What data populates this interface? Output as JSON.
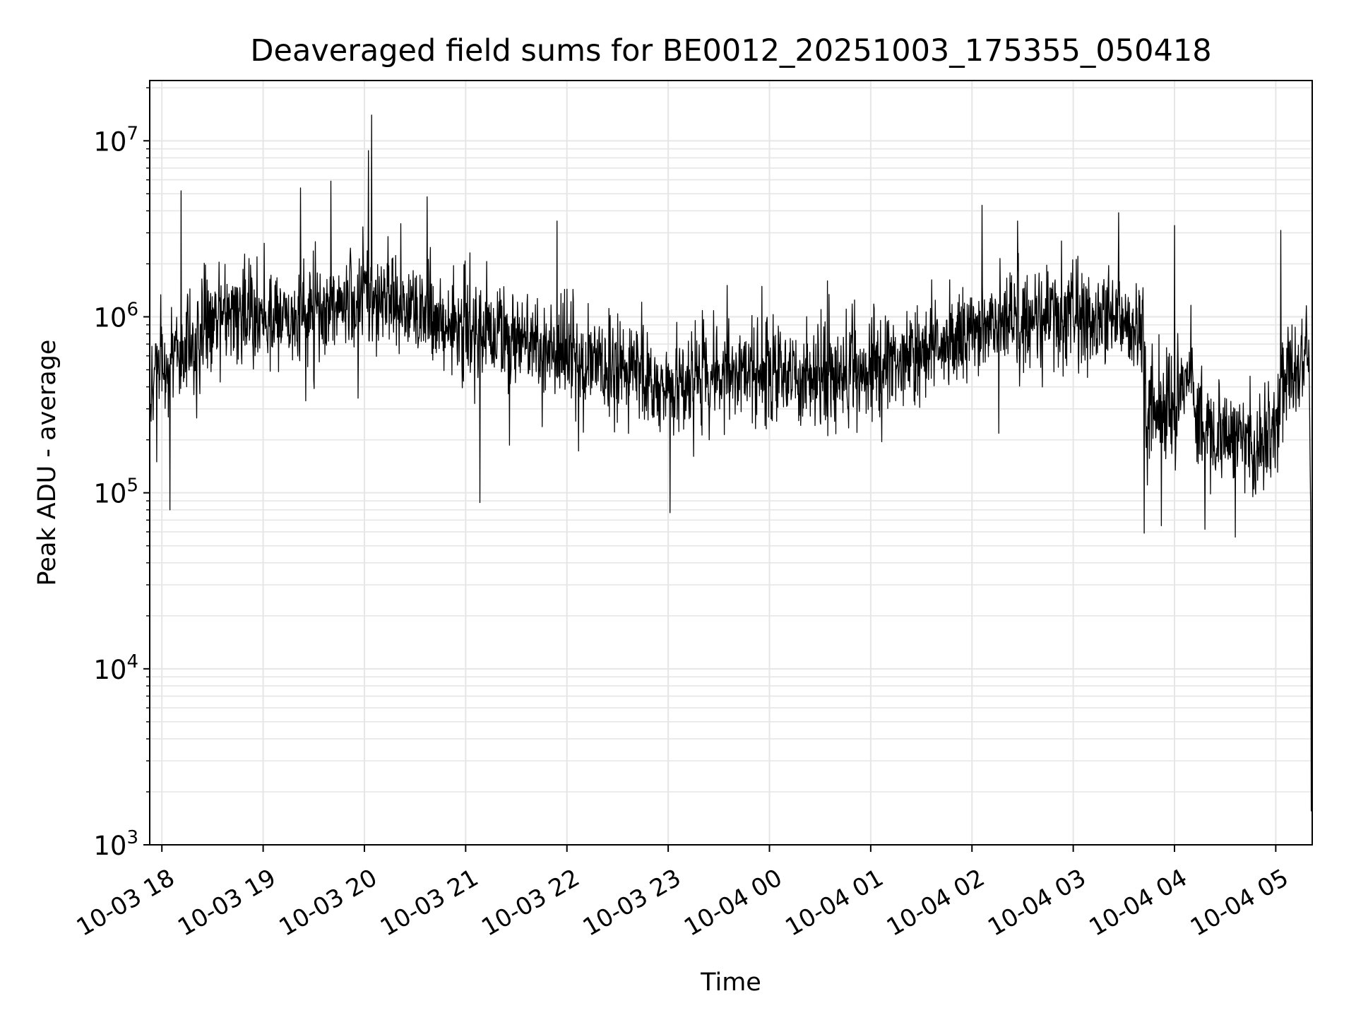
{
  "chart_data": {
    "type": "line",
    "title": "Deaveraged field sums for BE0012_20251003_175355_050418",
    "xlabel": "Time",
    "ylabel": "Peak ADU - average",
    "yscale": "log",
    "ylim": [
      1000,
      22000000
    ],
    "xlim_hours": [
      -0.12,
      11.36
    ],
    "x_origin_label": "10-03 18",
    "grid": true,
    "grid_minor": true,
    "line_color": "#000000",
    "grid_color": "#e6e6e6",
    "x_ticks": [
      {
        "hours": 0,
        "label": "10-03 18"
      },
      {
        "hours": 1,
        "label": "10-03 19"
      },
      {
        "hours": 2,
        "label": "10-03 20"
      },
      {
        "hours": 3,
        "label": "10-03 21"
      },
      {
        "hours": 4,
        "label": "10-03 22"
      },
      {
        "hours": 5,
        "label": "10-03 23"
      },
      {
        "hours": 6,
        "label": "10-04 00"
      },
      {
        "hours": 7,
        "label": "10-04 01"
      },
      {
        "hours": 8,
        "label": "10-04 02"
      },
      {
        "hours": 9,
        "label": "10-04 03"
      },
      {
        "hours": 10,
        "label": "10-04 04"
      },
      {
        "hours": 11,
        "label": "10-04 05"
      }
    ],
    "y_ticks": [
      {
        "value": 1000,
        "base": "10",
        "exp": "3"
      },
      {
        "value": 10000,
        "base": "10",
        "exp": "4"
      },
      {
        "value": 100000,
        "base": "10",
        "exp": "5"
      },
      {
        "value": 1000000,
        "base": "10",
        "exp": "6"
      },
      {
        "value": 10000000,
        "base": "10",
        "exp": "7"
      }
    ],
    "series": [
      {
        "name": "field sums",
        "envelope_x_hours": [
          -0.12,
          0.25,
          0.5,
          1.0,
          1.5,
          2.0,
          2.5,
          3.0,
          3.5,
          4.0,
          4.5,
          5.0,
          5.5,
          6.0,
          6.5,
          7.0,
          7.5,
          8.0,
          8.5,
          9.0,
          9.5,
          9.68,
          9.72,
          10.0,
          10.17,
          10.2,
          10.5,
          10.8,
          11.0,
          11.1,
          11.28
        ],
        "envelope_median": [
          450000,
          700000,
          1000000,
          1000000,
          1000000,
          1300000,
          1100000,
          850000,
          700000,
          600000,
          500000,
          400000,
          500000,
          500000,
          450000,
          500000,
          600000,
          800000,
          1000000,
          1000000,
          900000,
          800000,
          300000,
          250000,
          700000,
          250000,
          200000,
          180000,
          250000,
          500000,
          600000
        ],
        "peaks": [
          {
            "hours": 0.19,
            "value": 5200000
          },
          {
            "hours": 1.37,
            "value": 5400000
          },
          {
            "hours": 1.67,
            "value": 5900000
          },
          {
            "hours": 2.07,
            "value": 14000000
          },
          {
            "hours": 2.04,
            "value": 8800000
          },
          {
            "hours": 2.62,
            "value": 4800000
          },
          {
            "hours": 3.9,
            "value": 3500000
          },
          {
            "hours": 8.1,
            "value": 4300000
          },
          {
            "hours": 8.45,
            "value": 3500000
          },
          {
            "hours": 9.45,
            "value": 3900000
          },
          {
            "hours": 10.0,
            "value": 3300000
          },
          {
            "hours": 11.05,
            "value": 3100000
          }
        ],
        "dips": [
          {
            "hours": -0.05,
            "value": 150000
          },
          {
            "hours": 0.08,
            "value": 80000
          },
          {
            "hours": 3.14,
            "value": 88000
          },
          {
            "hours": 5.02,
            "value": 77000
          },
          {
            "hours": 9.7,
            "value": 59000
          },
          {
            "hours": 9.87,
            "value": 65000
          },
          {
            "hours": 10.3,
            "value": 62000
          },
          {
            "hours": 10.6,
            "value": 56000
          }
        ],
        "final_drop": {
          "hours": 11.35,
          "value": 1550
        }
      }
    ]
  }
}
